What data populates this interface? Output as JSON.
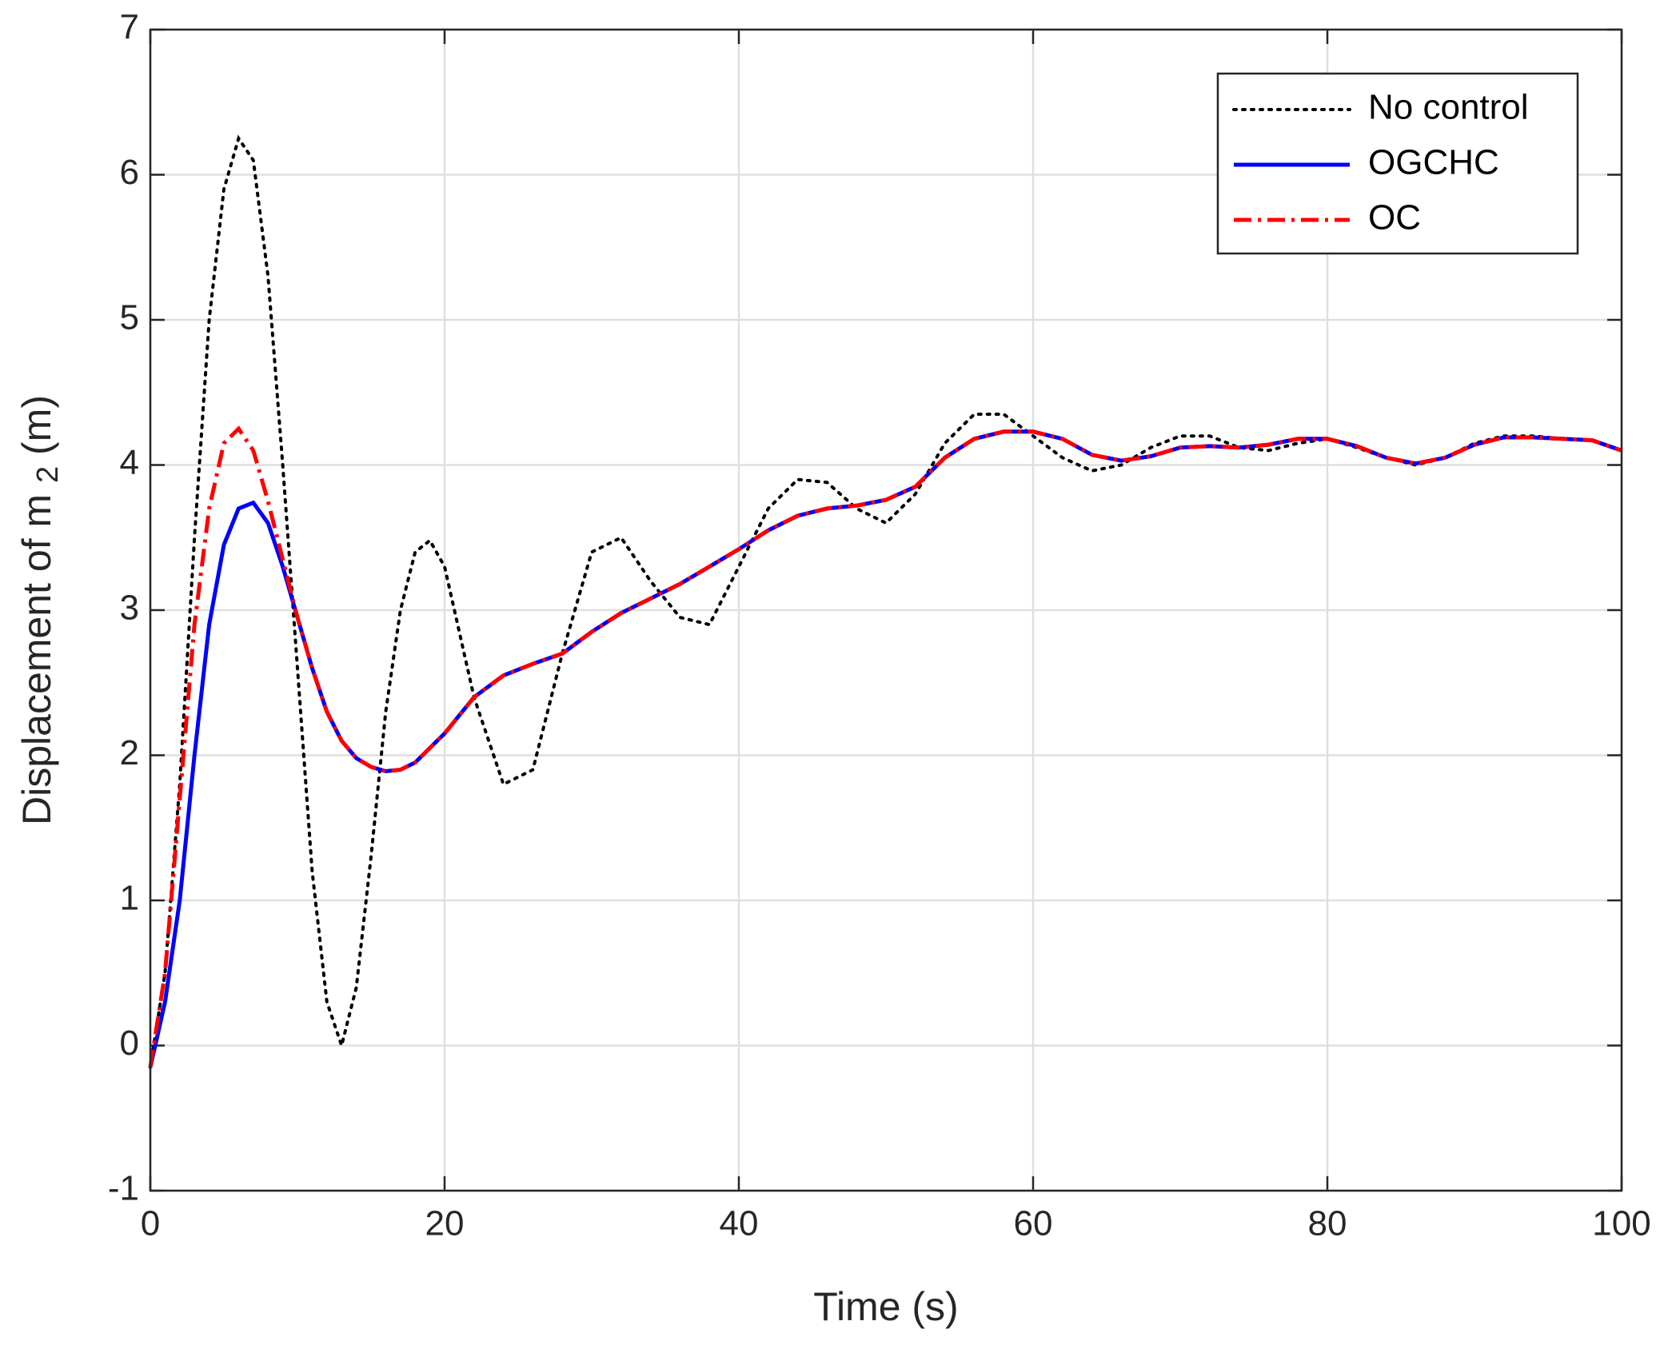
{
  "chart_data": {
    "type": "line",
    "x_label": "Time (s)",
    "y_label": "Displacement of m",
    "y_label_subscript": "2",
    "y_label_unit": "(m)",
    "x": [
      0,
      1,
      2,
      3,
      4,
      5,
      6,
      7,
      8,
      9,
      10,
      11,
      12,
      13,
      14,
      15,
      16,
      17,
      18,
      19,
      20,
      22,
      24,
      26,
      28,
      30,
      32,
      34,
      36,
      38,
      40,
      42,
      44,
      46,
      48,
      50,
      52,
      54,
      56,
      58,
      60,
      62,
      64,
      66,
      68,
      70,
      72,
      74,
      76,
      78,
      80,
      82,
      84,
      86,
      88,
      90,
      92,
      94,
      96,
      98,
      100
    ],
    "series": [
      {
        "name": "No control",
        "color": "#000000",
        "style": "dotted",
        "values": [
          -0.15,
          0.5,
          1.8,
          3.5,
          5.0,
          5.9,
          6.25,
          6.1,
          5.3,
          4.0,
          2.6,
          1.2,
          0.3,
          0.0,
          0.4,
          1.3,
          2.3,
          3.0,
          3.4,
          3.48,
          3.3,
          2.4,
          1.8,
          1.9,
          2.7,
          3.4,
          3.5,
          3.2,
          2.95,
          2.9,
          3.3,
          3.7,
          3.9,
          3.88,
          3.7,
          3.6,
          3.8,
          4.15,
          4.35,
          4.35,
          4.2,
          4.05,
          3.96,
          4.0,
          4.12,
          4.2,
          4.2,
          4.12,
          4.1,
          4.15,
          4.18,
          4.12,
          4.05,
          4.0,
          4.05,
          4.15,
          4.2,
          4.2,
          4.18,
          4.17,
          4.1
        ]
      },
      {
        "name": "OGCHC",
        "color": "#0000ff",
        "style": "solid",
        "values": [
          -0.15,
          0.3,
          1.0,
          2.0,
          2.9,
          3.45,
          3.7,
          3.74,
          3.6,
          3.3,
          2.95,
          2.6,
          2.3,
          2.1,
          1.98,
          1.92,
          1.89,
          1.9,
          1.95,
          2.05,
          2.15,
          2.4,
          2.55,
          2.63,
          2.7,
          2.85,
          2.98,
          3.08,
          3.18,
          3.3,
          3.42,
          3.55,
          3.65,
          3.7,
          3.72,
          3.76,
          3.85,
          4.05,
          4.18,
          4.23,
          4.23,
          4.18,
          4.07,
          4.03,
          4.06,
          4.12,
          4.13,
          4.12,
          4.14,
          4.18,
          4.18,
          4.13,
          4.05,
          4.01,
          4.05,
          4.14,
          4.19,
          4.19,
          4.18,
          4.17,
          4.1
        ]
      },
      {
        "name": "OC",
        "color": "#ff0000",
        "style": "dashdot",
        "values": [
          -0.15,
          0.5,
          1.7,
          2.9,
          3.7,
          4.15,
          4.25,
          4.1,
          3.75,
          3.35,
          2.95,
          2.6,
          2.3,
          2.1,
          1.98,
          1.92,
          1.89,
          1.9,
          1.95,
          2.05,
          2.15,
          2.4,
          2.55,
          2.63,
          2.7,
          2.85,
          2.98,
          3.08,
          3.18,
          3.3,
          3.42,
          3.55,
          3.65,
          3.7,
          3.72,
          3.76,
          3.85,
          4.05,
          4.18,
          4.23,
          4.23,
          4.18,
          4.07,
          4.03,
          4.06,
          4.12,
          4.13,
          4.12,
          4.14,
          4.18,
          4.18,
          4.13,
          4.05,
          4.01,
          4.05,
          4.14,
          4.19,
          4.19,
          4.18,
          4.17,
          4.1
        ]
      }
    ],
    "xlim": [
      0,
      100
    ],
    "xticks": [
      0,
      20,
      40,
      60,
      80,
      100
    ],
    "ylim": [
      -1,
      7
    ],
    "yticks": [
      -1,
      0,
      1,
      2,
      3,
      4,
      5,
      6,
      7
    ],
    "grid": true,
    "legend": "top-right"
  }
}
